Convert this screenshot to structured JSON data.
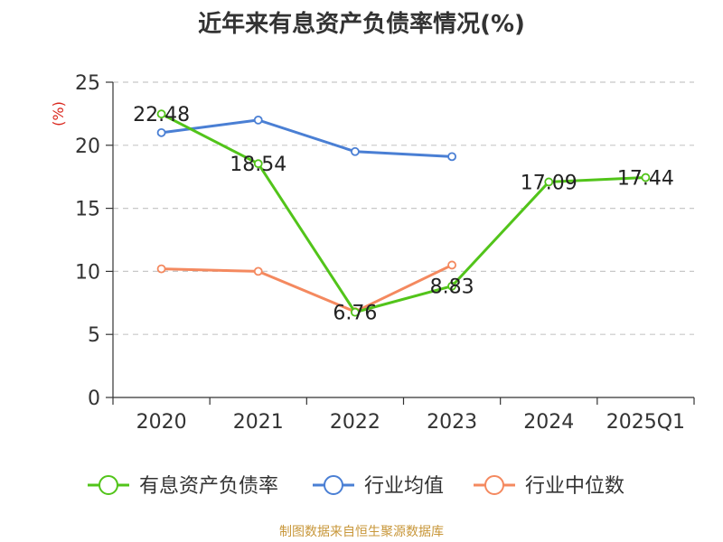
{
  "chart_data": {
    "type": "line",
    "title": "近年来有息资产负债率情况(%)",
    "ylabel": "(%)",
    "xlabel": "",
    "categories": [
      "2020",
      "2021",
      "2022",
      "2023",
      "2024",
      "2025Q1"
    ],
    "ylim": [
      0,
      25
    ],
    "yticks": [
      0,
      5,
      10,
      15,
      20,
      25
    ],
    "grid": true,
    "legend_position": "bottom",
    "series": [
      {
        "name": "有息资产负债率",
        "color": "#52c41a",
        "values": [
          22.48,
          18.54,
          6.76,
          8.83,
          17.09,
          17.44
        ],
        "labels": [
          "22.48",
          "18.54",
          "6.76",
          "8.83",
          "17.09",
          "17.44"
        ]
      },
      {
        "name": "行业均值",
        "color": "#4a7fd4",
        "values": [
          21.0,
          22.0,
          19.5,
          19.1,
          null,
          null
        ]
      },
      {
        "name": "行业中位数",
        "color": "#f4895f",
        "values": [
          10.2,
          10.0,
          6.8,
          10.5,
          null,
          null
        ]
      }
    ]
  },
  "source_note": "制图数据来自恒生聚源数据库"
}
